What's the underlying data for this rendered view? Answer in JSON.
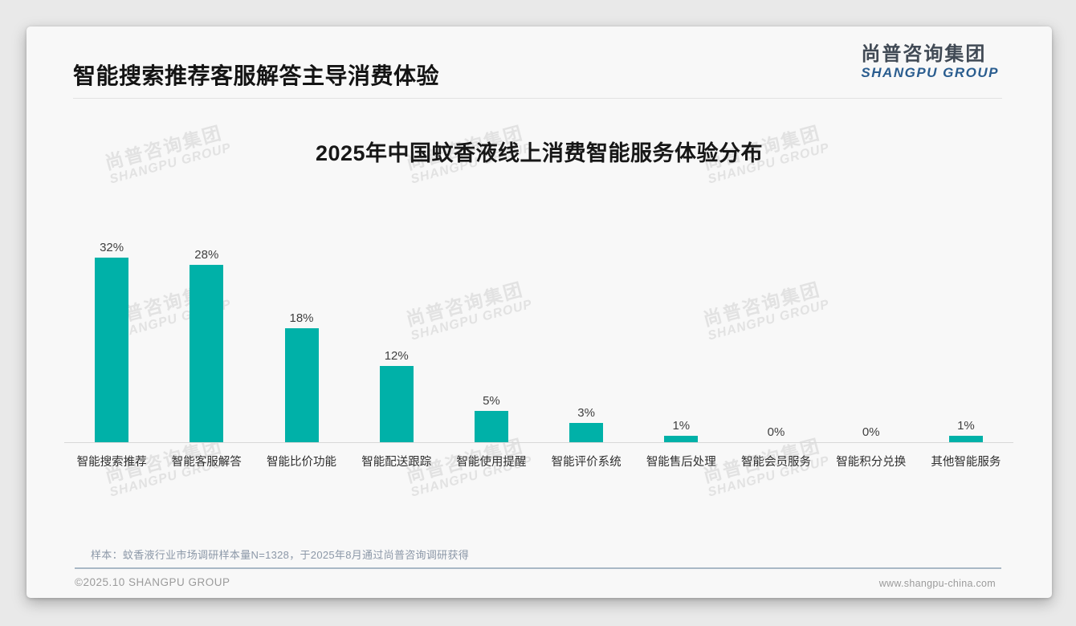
{
  "page": {
    "header": {
      "title": "智能搜索推荐客服解答主导消费体验"
    },
    "logo": {
      "cn": "尚普咨询集团",
      "en": "SHANGPU GROUP",
      "en_color": "#2a5d8f",
      "cn_color": "#414a55"
    },
    "watermark": {
      "cn": "尚普咨询集团",
      "en": "SHANGPU GROUP"
    },
    "footnote": "样本：蚊香液行业市场调研样本量N=1328，于2025年8月通过尚普咨询调研获得",
    "footer": {
      "copyright": "©2025.10 SHANGPU GROUP",
      "website": "www.shangpu-china.com"
    }
  },
  "chart_data": {
    "type": "bar",
    "title": "2025年中国蚊香液线上消费智能服务体验分布",
    "categories": [
      "智能搜索推荐",
      "智能客服解答",
      "智能比价功能",
      "智能配送跟踪",
      "智能使用提醒",
      "智能评价系统",
      "智能售后处理",
      "智能会员服务",
      "智能积分兑换",
      "其他智能服务"
    ],
    "values": [
      32,
      28,
      18,
      12,
      5,
      3,
      1,
      0,
      0,
      1
    ],
    "unit": "%",
    "data_labels": true,
    "bar_color": "#00b1a8",
    "xlabel": "",
    "ylabel": "",
    "ylim": [
      0,
      32
    ],
    "grid": false,
    "legend": "none"
  }
}
